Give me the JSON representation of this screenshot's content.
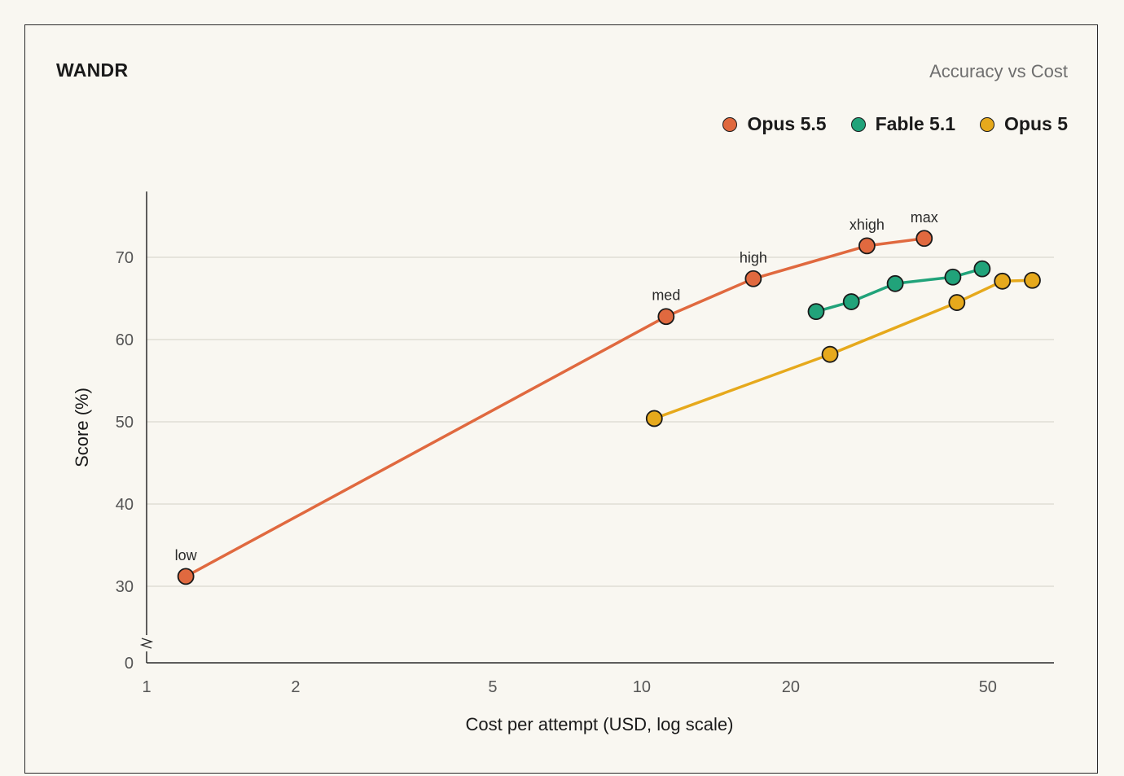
{
  "header": {
    "title": "WANDR",
    "subtitle": "Accuracy vs Cost"
  },
  "chart_data": {
    "type": "line",
    "title": "WANDR",
    "subtitle": "Accuracy vs Cost",
    "xlabel": "Cost per attempt (USD, log scale)",
    "ylabel": "Score (%)",
    "x_scale": "log",
    "xlim": [
      1,
      68
    ],
    "ylim": [
      0,
      78
    ],
    "y_axis_break": "between 0 and 30",
    "x_ticks": [
      1,
      2,
      5,
      10,
      20,
      50
    ],
    "x_tick_labels": [
      "1",
      "2",
      "5",
      "10",
      "20",
      "50"
    ],
    "y_ticks": [
      0,
      30,
      40,
      50,
      60,
      70
    ],
    "y_tick_labels": [
      "0",
      "30",
      "40",
      "50",
      "60",
      "70"
    ],
    "grid": "horizontal",
    "legend_position": "top-right",
    "series": [
      {
        "name": "Opus 5.5",
        "color": "#e0693f",
        "points": [
          {
            "x": 1.2,
            "y": 31.2,
            "label": "low"
          },
          {
            "x": 11.2,
            "y": 62.8,
            "label": "med"
          },
          {
            "x": 16.8,
            "y": 67.4,
            "label": "high"
          },
          {
            "x": 28.5,
            "y": 71.4,
            "label": "xhigh"
          },
          {
            "x": 37.2,
            "y": 72.3,
            "label": "max"
          }
        ]
      },
      {
        "name": "Fable 5.1",
        "color": "#21a37a",
        "points": [
          {
            "x": 22.5,
            "y": 63.4
          },
          {
            "x": 26.5,
            "y": 64.6
          },
          {
            "x": 32.5,
            "y": 66.8
          },
          {
            "x": 42.5,
            "y": 67.6
          },
          {
            "x": 48.7,
            "y": 68.6
          }
        ]
      },
      {
        "name": "Opus 5",
        "color": "#e6a91c",
        "points": [
          {
            "x": 10.6,
            "y": 50.4
          },
          {
            "x": 24.0,
            "y": 58.2
          },
          {
            "x": 43.3,
            "y": 64.5
          },
          {
            "x": 53.5,
            "y": 67.1
          },
          {
            "x": 61.5,
            "y": 67.2
          }
        ]
      }
    ]
  }
}
